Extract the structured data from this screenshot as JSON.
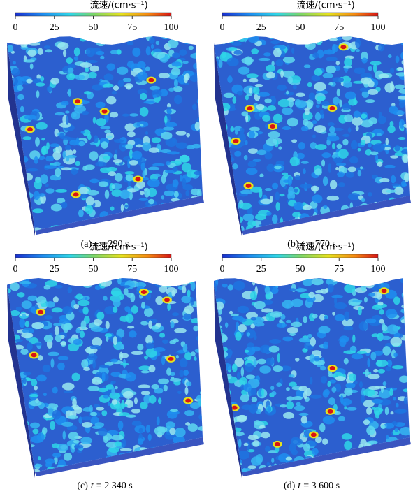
{
  "panels": [
    {
      "colorbar": {
        "label": "流速/(cm·s⁻¹)",
        "ticks": [
          0,
          25,
          50,
          75,
          100
        ]
      },
      "caption": {
        "label": "(a)",
        "var": "t",
        "rest": "= 290 s"
      }
    },
    {
      "colorbar": {
        "label": "流速/(cm·s⁻¹)",
        "ticks": [
          0,
          25,
          50,
          75,
          100
        ]
      },
      "caption": {
        "label": "(b)",
        "var": "t",
        "rest": "= 770 s"
      }
    },
    {
      "colorbar": {
        "label": "流速/(cm·s⁻¹)",
        "ticks": [
          0,
          25,
          50,
          75,
          100
        ]
      },
      "caption": {
        "label": "(c)",
        "var": "t",
        "rest": "= 2 340 s"
      }
    },
    {
      "colorbar": {
        "label": "流速/(cm·s⁻¹)",
        "ticks": [
          0,
          25,
          50,
          75,
          100
        ]
      },
      "caption": {
        "label": "(d)",
        "var": "t",
        "rest": "= 3 600 s"
      }
    }
  ]
}
